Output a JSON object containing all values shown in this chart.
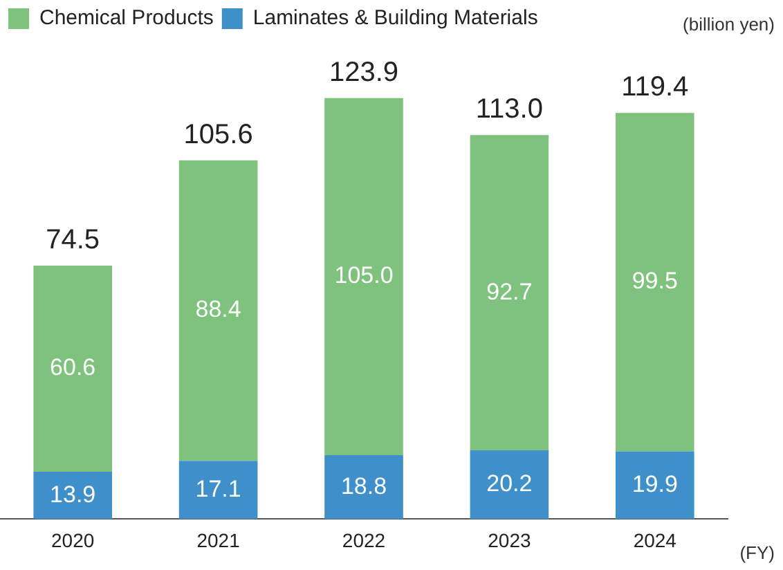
{
  "chart_data": {
    "type": "bar",
    "stacked": true,
    "categories": [
      "2020",
      "2021",
      "2022",
      "2023",
      "2024"
    ],
    "series": [
      {
        "name": "Laminates & Building Materials",
        "color": "#3f8fcb",
        "values": [
          13.9,
          17.1,
          18.8,
          20.2,
          19.9
        ],
        "value_labels": [
          "13.9",
          "17.1",
          "18.8",
          "20.2",
          "19.9"
        ]
      },
      {
        "name": "Chemical Products",
        "color": "#7fc27e",
        "values": [
          60.6,
          88.4,
          105.0,
          92.7,
          99.5
        ],
        "value_labels": [
          "60.6",
          "88.4",
          "105.0",
          "92.7",
          "99.5"
        ]
      }
    ],
    "totals": [
      "74.5",
      "105.6",
      "123.9",
      "113.0",
      "119.4"
    ],
    "legend": "top left",
    "grid": false,
    "annotations": [
      "(billion yen)",
      "(FY)"
    ]
  }
}
